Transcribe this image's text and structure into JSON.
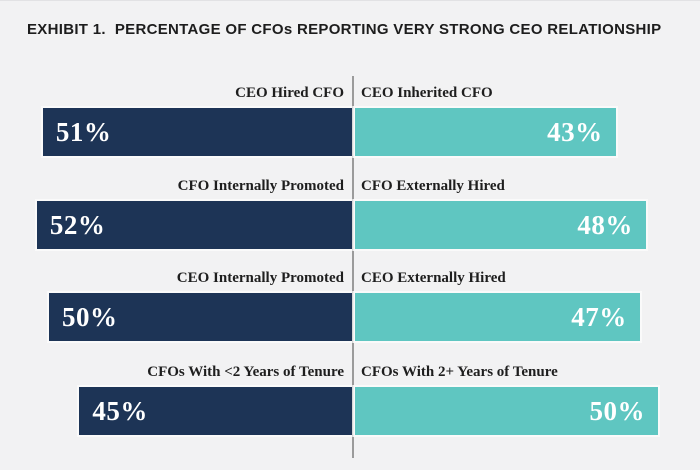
{
  "title": {
    "prefix": "EXHIBIT 1.",
    "text": "PERCENTAGE OF CFOs REPORTING VERY STRONG CEO RELATIONSHIP"
  },
  "colors": {
    "background": "#f2f2f3",
    "left_bar": "#1d3456",
    "right_bar": "#5fc6c1",
    "divider": "#9b9b9b",
    "bar_value_text": "#ffffff",
    "label_text": "#1e1e1e",
    "title_text": "#1d1d1d"
  },
  "chart_data": {
    "type": "bar",
    "subtype": "diverging-paired-horizontal-bars",
    "title": "EXHIBIT 1. PERCENTAGE OF CFOs REPORTING VERY STRONG CEO RELATIONSHIP",
    "unit": "percent",
    "legend": "none",
    "grid": false,
    "axis_range_each_side": [
      0,
      57
    ],
    "rows": [
      {
        "left": {
          "label": "CEO Hired CFO",
          "value": 51,
          "value_label": "51%"
        },
        "right": {
          "label": "CEO Inherited CFO",
          "value": 43,
          "value_label": "43%"
        }
      },
      {
        "left": {
          "label": "CFO Internally Promoted",
          "value": 52,
          "value_label": "52%"
        },
        "right": {
          "label": "CFO Externally Hired",
          "value": 48,
          "value_label": "48%"
        }
      },
      {
        "left": {
          "label": "CEO Internally Promoted",
          "value": 50,
          "value_label": "50%"
        },
        "right": {
          "label": "CEO Externally Hired",
          "value": 47,
          "value_label": "47%"
        }
      },
      {
        "left": {
          "label": "CFOs With <2 Years of Tenure",
          "value": 45,
          "value_label": "45%"
        },
        "right": {
          "label": "CFOs With 2+ Years of Tenure",
          "value": 50,
          "value_label": "50%"
        }
      }
    ]
  }
}
